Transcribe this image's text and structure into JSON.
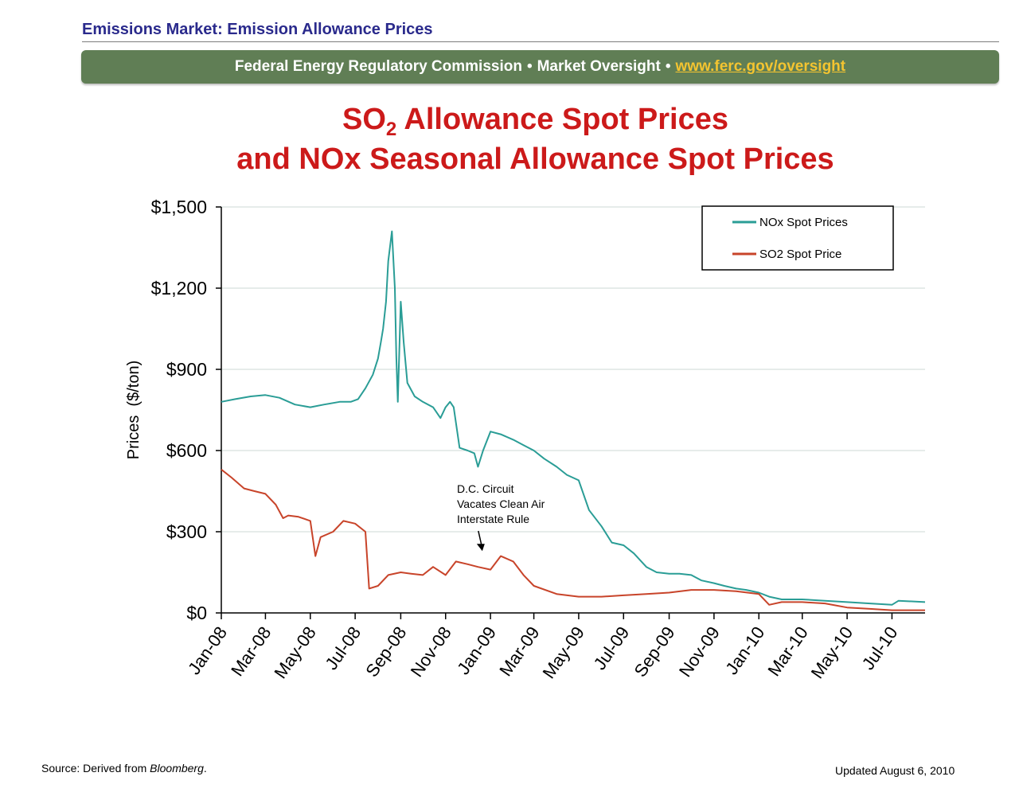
{
  "header": {
    "title": "Emissions Market: Emission Allowance Prices"
  },
  "banner": {
    "org": "Federal Energy Regulatory Commission",
    "separator": "•",
    "section": "Market Oversight",
    "link": "www.ferc.gov/oversight"
  },
  "title": {
    "line1_pre": "SO",
    "line1_sub": "2",
    "line1_post": " Allowance Spot Prices",
    "line2": "and NOx Seasonal Allowance Spot Prices"
  },
  "footer": {
    "source_prefix": "Source: Derived from ",
    "source_name": "Bloomberg",
    "source_suffix": ".",
    "updated": "Updated August 6, 2010"
  },
  "colors": {
    "nox": "#2a9d96",
    "so2": "#c8442a",
    "grid": "#cdd8d4",
    "axis": "#000000"
  },
  "chart_data": {
    "type": "line",
    "title": "SO2 Allowance Spot Prices and NOx Seasonal Allowance Spot Prices",
    "xlabel": "",
    "ylabel": "Prices  ($/ton)",
    "ylim": [
      0,
      1500
    ],
    "xlim": [
      "2008-01-01",
      "2010-08-15"
    ],
    "y_ticks": [
      0,
      300,
      600,
      900,
      1200,
      1500
    ],
    "y_tick_labels": [
      "$0",
      "$300",
      "$600",
      "$900",
      "$1,200",
      "$1,500"
    ],
    "x_ticks": [
      "2008-01-01",
      "2008-03-01",
      "2008-05-01",
      "2008-07-01",
      "2008-09-01",
      "2008-11-01",
      "2009-01-01",
      "2009-03-01",
      "2009-05-01",
      "2009-07-01",
      "2009-09-01",
      "2009-11-01",
      "2010-01-01",
      "2010-03-01",
      "2010-05-01",
      "2010-07-01"
    ],
    "x_tick_labels": [
      "Jan-08",
      "Mar-08",
      "May-08",
      "Jul-08",
      "Sep-08",
      "Nov-08",
      "Jan-09",
      "Mar-09",
      "May-09",
      "Jul-09",
      "Sep-09",
      "Nov-09",
      "Jan-10",
      "Mar-10",
      "May-10",
      "Jul-10"
    ],
    "grid": true,
    "legend_position": "top-right",
    "series": [
      {
        "name": "NOx Spot Prices",
        "color": "#2a9d96",
        "x": [
          "2008-01-01",
          "2008-01-20",
          "2008-02-10",
          "2008-03-01",
          "2008-03-20",
          "2008-04-10",
          "2008-05-01",
          "2008-05-20",
          "2008-06-10",
          "2008-06-25",
          "2008-07-05",
          "2008-07-15",
          "2008-07-25",
          "2008-08-01",
          "2008-08-05",
          "2008-08-08",
          "2008-08-12",
          "2008-08-15",
          "2008-08-20",
          "2008-08-24",
          "2008-08-26",
          "2008-08-28",
          "2008-09-01",
          "2008-09-05",
          "2008-09-10",
          "2008-09-20",
          "2008-10-01",
          "2008-10-15",
          "2008-10-25",
          "2008-11-01",
          "2008-11-07",
          "2008-11-12",
          "2008-11-20",
          "2008-12-01",
          "2008-12-10",
          "2008-12-15",
          "2008-12-22",
          "2009-01-01",
          "2009-01-15",
          "2009-02-01",
          "2009-02-15",
          "2009-03-01",
          "2009-03-15",
          "2009-04-01",
          "2009-04-15",
          "2009-05-01",
          "2009-05-15",
          "2009-06-01",
          "2009-06-15",
          "2009-07-01",
          "2009-07-15",
          "2009-08-01",
          "2009-08-15",
          "2009-09-01",
          "2009-09-15",
          "2009-10-01",
          "2009-10-15",
          "2009-11-01",
          "2009-11-15",
          "2009-12-01",
          "2009-12-15",
          "2010-01-01",
          "2010-01-15",
          "2010-02-01",
          "2010-03-01",
          "2010-04-01",
          "2010-05-01",
          "2010-06-01",
          "2010-07-01",
          "2010-07-10",
          "2010-08-15"
        ],
        "y": [
          780,
          790,
          800,
          805,
          795,
          770,
          760,
          770,
          780,
          780,
          790,
          830,
          880,
          940,
          1000,
          1050,
          1150,
          1300,
          1410,
          1200,
          950,
          780,
          1150,
          1000,
          850,
          800,
          780,
          760,
          720,
          760,
          780,
          760,
          610,
          600,
          590,
          540,
          600,
          670,
          660,
          640,
          620,
          600,
          570,
          540,
          510,
          490,
          380,
          320,
          260,
          250,
          220,
          170,
          150,
          145,
          145,
          140,
          120,
          110,
          100,
          90,
          85,
          75,
          60,
          50,
          50,
          45,
          40,
          35,
          30,
          45,
          40
        ]
      },
      {
        "name": "SO2 Spot Price",
        "color": "#c8442a",
        "x": [
          "2008-01-01",
          "2008-01-15",
          "2008-02-01",
          "2008-02-15",
          "2008-03-01",
          "2008-03-15",
          "2008-03-25",
          "2008-04-01",
          "2008-04-15",
          "2008-05-01",
          "2008-05-08",
          "2008-05-15",
          "2008-06-01",
          "2008-06-15",
          "2008-07-01",
          "2008-07-15",
          "2008-07-20",
          "2008-08-01",
          "2008-08-15",
          "2008-09-01",
          "2008-09-15",
          "2008-10-01",
          "2008-10-15",
          "2008-11-01",
          "2008-11-15",
          "2008-12-01",
          "2008-12-15",
          "2009-01-01",
          "2009-01-15",
          "2009-02-01",
          "2009-02-15",
          "2009-03-01",
          "2009-04-01",
          "2009-05-01",
          "2009-06-01",
          "2009-07-01",
          "2009-08-01",
          "2009-09-01",
          "2009-10-01",
          "2009-11-01",
          "2009-12-01",
          "2010-01-01",
          "2010-01-15",
          "2010-02-01",
          "2010-03-01",
          "2010-04-01",
          "2010-05-01",
          "2010-06-01",
          "2010-07-01",
          "2010-08-15"
        ],
        "y": [
          530,
          500,
          460,
          450,
          440,
          400,
          350,
          360,
          355,
          340,
          210,
          280,
          300,
          340,
          330,
          300,
          90,
          100,
          140,
          150,
          145,
          140,
          170,
          140,
          190,
          180,
          170,
          160,
          210,
          190,
          140,
          100,
          70,
          60,
          60,
          65,
          70,
          75,
          85,
          85,
          80,
          70,
          30,
          40,
          40,
          35,
          20,
          15,
          10,
          10
        ]
      }
    ],
    "annotations": [
      {
        "text": "D.C. Circuit\nVacates Clean Air\nInterstate Rule",
        "x": "2008-12-22",
        "y": 220
      }
    ]
  }
}
